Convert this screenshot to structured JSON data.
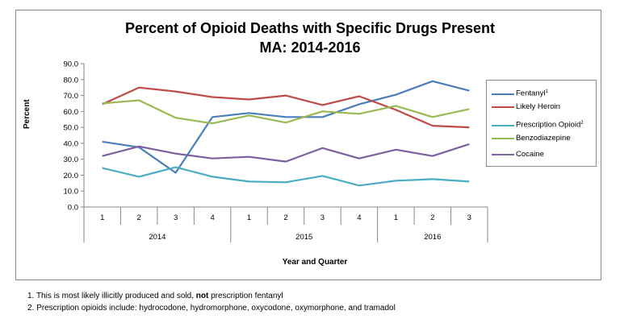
{
  "chart_data": {
    "type": "line",
    "title_line1": "Percent of Opioid Deaths with Specific Drugs Present",
    "title_line2": "MA: 2014-2016",
    "ylabel": "Percent",
    "xlabel": "Year and Quarter",
    "ylim": [
      0,
      90
    ],
    "ytick_step": 10,
    "ytick_labels": [
      "0.0",
      "10.0",
      "20.0",
      "30.0",
      "40.0",
      "50.0",
      "60.0",
      "70.0",
      "80.0",
      "90.0"
    ],
    "quarters": [
      "1",
      "2",
      "3",
      "4",
      "1",
      "2",
      "3",
      "4",
      "1",
      "2",
      "3"
    ],
    "years": [
      {
        "label": "2014",
        "count": 4
      },
      {
        "label": "2015",
        "count": 4
      },
      {
        "label": "2016",
        "count": 3
      }
    ],
    "grid": false,
    "legend_position": "right",
    "series": [
      {
        "name": "Fentanyl",
        "sup": "1",
        "color": "#4a7ebb",
        "values": [
          41.0,
          37.5,
          21.5,
          56.5,
          59.0,
          56.5,
          56.5,
          64.5,
          70.5,
          79.0,
          73.0
        ]
      },
      {
        "name": "Likely Heroin",
        "sup": "",
        "color": "#be4b48",
        "values": [
          64.5,
          75.0,
          72.5,
          69.0,
          67.5,
          70.0,
          64.0,
          69.5,
          61.0,
          51.0,
          50.0
        ]
      },
      {
        "name": "Prescription Opioid",
        "sup": "2",
        "color": "#4bacc6",
        "values": [
          24.5,
          19.0,
          25.0,
          19.0,
          16.0,
          15.5,
          19.5,
          13.5,
          16.5,
          17.5,
          16.0
        ]
      },
      {
        "name": "Benzodiazepine",
        "sup": "",
        "color": "#98b954",
        "values": [
          65.0,
          67.0,
          56.0,
          52.5,
          57.5,
          53.0,
          60.0,
          58.5,
          63.5,
          56.5,
          61.5
        ]
      },
      {
        "name": "Cocaine",
        "sup": "",
        "color": "#7d5fa0",
        "values": [
          32.0,
          38.0,
          33.5,
          30.5,
          31.5,
          28.5,
          37.0,
          30.5,
          36.0,
          32.0,
          39.5
        ]
      }
    ]
  },
  "footnotes": {
    "note1_prefix": "1. This is most likely illicitly produced and sold, ",
    "note1_bold": "not",
    "note1_suffix": " prescription fentanyl",
    "note2": "2. Prescription opioids include: hydrocodone, hydromorphone, oxycodone, oxymorphone, and tramadol"
  }
}
